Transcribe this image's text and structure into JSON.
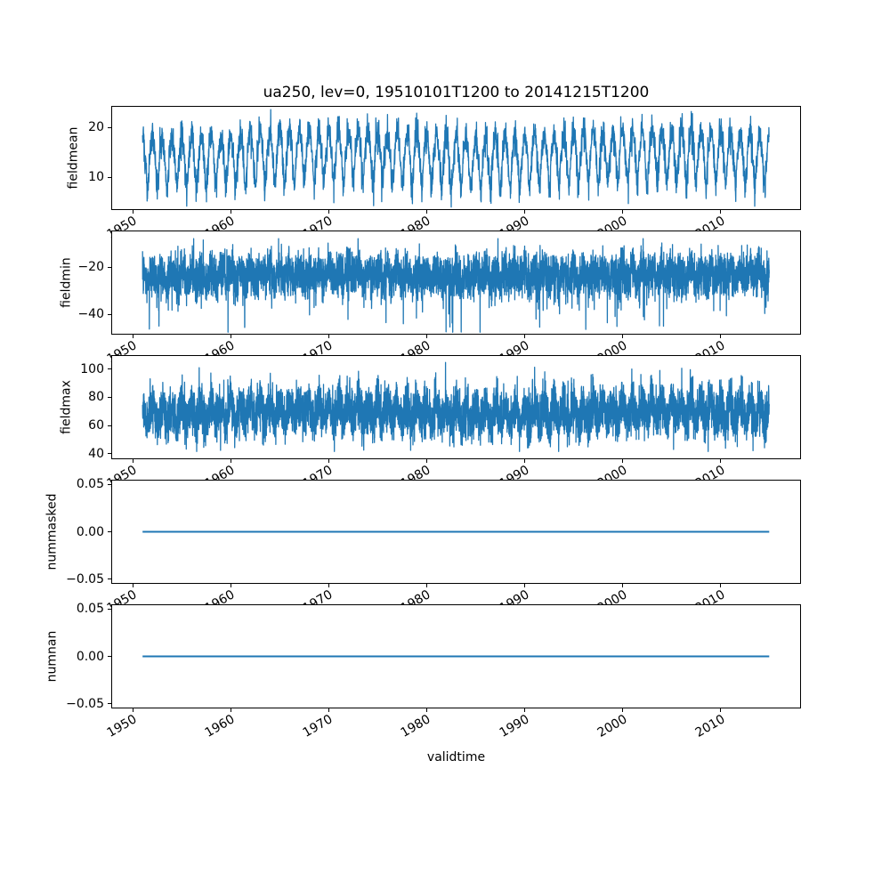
{
  "title": "ua250, lev=0, 19510101T1200 to 20141215T1200",
  "xlabel": "validtime",
  "chart_data": {
    "type": "line",
    "title": "ua250, lev=0, 19510101T1200 to 20141215T1200",
    "xlabel": "validtime",
    "line_color": "#1f77b4",
    "axis_color": "#000000",
    "grid": false,
    "legend": "none",
    "x": {
      "lim": [
        1947.8,
        2018.2
      ],
      "ticks": [
        {
          "v": 1950,
          "label": "1950"
        },
        {
          "v": 1960,
          "label": "1960"
        },
        {
          "v": 1970,
          "label": "1970"
        },
        {
          "v": 1980,
          "label": "1980"
        },
        {
          "v": 1990,
          "label": "1990"
        },
        {
          "v": 2000,
          "label": "2000"
        },
        {
          "v": 2010,
          "label": "2010"
        }
      ],
      "data_start": 1951.0,
      "data_end": 2014.96
    },
    "subplots": [
      {
        "ylabel": "fieldmean",
        "ylim": [
          3.4,
          24.3
        ],
        "yticks": [
          {
            "v": 20,
            "label": "20"
          },
          {
            "v": 10,
            "label": "10"
          }
        ],
        "series": {
          "name": "fieldmean",
          "kind": "seasonal_noise",
          "points_per_year": 52,
          "seed": 101,
          "base": 15.0,
          "seasonal_amp": 3.8,
          "dip_amp": 2.8,
          "slow_amp": 0.7,
          "noise_sd": 1.6,
          "spike_prob": 0,
          "spike_amp": 0,
          "spike_dir": 1,
          "clamp": [
            4.0,
            23.8
          ],
          "approx_min": 4.0,
          "approx_max": 23.5
        }
      },
      {
        "ylabel": "fieldmin",
        "ylim": [
          -48.5,
          -4.6
        ],
        "yticks": [
          {
            "v": -20,
            "label": "−20"
          },
          {
            "v": -40,
            "label": "−40"
          }
        ],
        "series": {
          "name": "fieldmin",
          "kind": "seasonal_noise",
          "points_per_year": 104,
          "seed": 202,
          "base": -23.5,
          "seasonal_amp": 2.2,
          "dip_amp": 0,
          "slow_amp": 0.5,
          "noise_sd": 4.3,
          "spike_prob": 0.012,
          "spike_amp": 14,
          "spike_dir": -1,
          "clamp": [
            -47.5,
            -8.0
          ],
          "approx_min": -47,
          "approx_max": -8
        }
      },
      {
        "ylabel": "fieldmax",
        "ylim": [
          36,
          110
        ],
        "yticks": [
          {
            "v": 100,
            "label": "100"
          },
          {
            "v": 80,
            "label": "80"
          },
          {
            "v": 60,
            "label": "60"
          },
          {
            "v": 40,
            "label": "40"
          }
        ],
        "series": {
          "name": "fieldmax",
          "kind": "seasonal_noise",
          "points_per_year": 104,
          "seed": 303,
          "base": 69,
          "seasonal_amp": 6,
          "dip_amp": 0,
          "slow_amp": 1.2,
          "noise_sd": 8,
          "spike_prob": 0.008,
          "spike_amp": 12,
          "spike_dir": 1,
          "clamp": [
            41.5,
            108
          ],
          "approx_min": 42,
          "approx_max": 108
        }
      },
      {
        "ylabel": "nummasked",
        "ylim": [
          -0.055,
          0.055
        ],
        "yticks": [
          {
            "v": 0.05,
            "label": "0.05"
          },
          {
            "v": 0,
            "label": "0.00"
          },
          {
            "v": -0.05,
            "label": "−0.05"
          }
        ],
        "series": {
          "name": "nummasked",
          "kind": "constant",
          "value": 0
        }
      },
      {
        "ylabel": "numnan",
        "ylim": [
          -0.055,
          0.055
        ],
        "yticks": [
          {
            "v": 0.05,
            "label": "0.05"
          },
          {
            "v": 0,
            "label": "0.00"
          },
          {
            "v": -0.05,
            "label": "−0.05"
          }
        ],
        "series": {
          "name": "numnan",
          "kind": "constant",
          "value": 0
        }
      }
    ]
  }
}
